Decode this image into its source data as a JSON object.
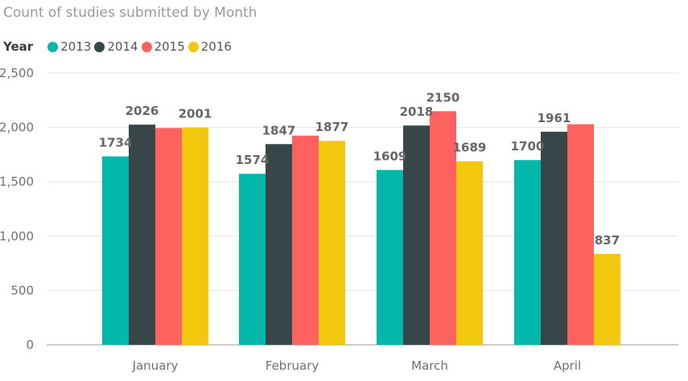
{
  "chart_data": {
    "type": "bar",
    "title": "Count of studies submitted by Month",
    "legend_title": "Year",
    "legend_position": "top-left",
    "categories": [
      "January",
      "February",
      "March",
      "April"
    ],
    "series": [
      {
        "name": "2013",
        "color": "#01B8AA",
        "values": [
          1734,
          1574,
          1609,
          1700
        ],
        "labels": [
          "1734",
          "1574",
          "1609",
          "1700"
        ]
      },
      {
        "name": "2014",
        "color": "#374649",
        "values": [
          2026,
          1847,
          2018,
          1961
        ],
        "labels": [
          "2026",
          "1847",
          "2018",
          "1961"
        ]
      },
      {
        "name": "2015",
        "color": "#FD625E",
        "values": [
          1995,
          1925,
          2150,
          2030
        ],
        "labels": [
          "",
          "",
          "2150",
          ""
        ]
      },
      {
        "name": "2016",
        "color": "#F2C80F",
        "values": [
          2001,
          1877,
          1689,
          837
        ],
        "labels": [
          "2001",
          "1877",
          "1689",
          "837"
        ]
      }
    ],
    "ylim": [
      0,
      2500
    ],
    "y_ticks": [
      0,
      500,
      1000,
      1500,
      2000,
      2500
    ],
    "y_tick_labels": [
      "0",
      "500",
      "1,000",
      "1,500",
      "2,000",
      "2,500"
    ],
    "grid": true
  }
}
